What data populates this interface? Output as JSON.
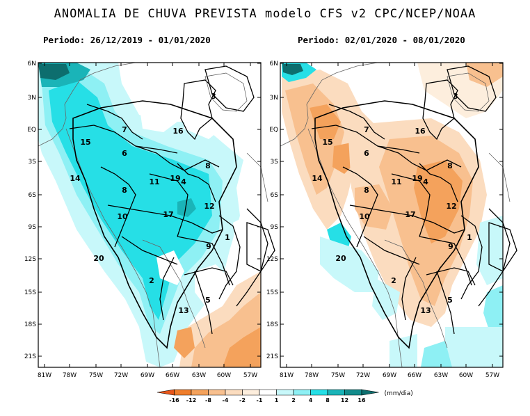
{
  "title": "ANOMALIA DE CHUVA PREVISTA modelo CFS v2 CPC/NCEP/NOAA",
  "panels": [
    {
      "period": "Periodo: 26/12/2019 - 01/01/2020"
    },
    {
      "period": "Periodo: 02/01/2020 - 08/01/2020"
    }
  ],
  "lat_labels": [
    "6N",
    "3N",
    "EQ",
    "3S",
    "6S",
    "9S",
    "12S",
    "15S",
    "18S",
    "21S"
  ],
  "lon_labels": [
    "81W",
    "78W",
    "75W",
    "72W",
    "69W",
    "66W",
    "63W",
    "60W",
    "57W"
  ],
  "regions": [
    "1",
    "2",
    "3",
    "4",
    "5",
    "6",
    "7",
    "8",
    "8",
    "9",
    "10",
    "11",
    "12",
    "13",
    "14",
    "15",
    "16",
    "17",
    "19",
    "20"
  ],
  "colorbar": {
    "levels": [
      "-16",
      "-12",
      "-8",
      "-4",
      "-2",
      "-1",
      "1",
      "2",
      "4",
      "8",
      "12",
      "16"
    ],
    "units": "(mm/dia)",
    "colors": [
      "#e8561a",
      "#ef7e2c",
      "#f4a25c",
      "#f8c08f",
      "#fbdcbf",
      "#fdeedd",
      "#ffffff",
      "#c8f8fa",
      "#8ef0f4",
      "#26dfe6",
      "#1ab4b8",
      "#138c8c",
      "#0d6e6e"
    ]
  }
}
